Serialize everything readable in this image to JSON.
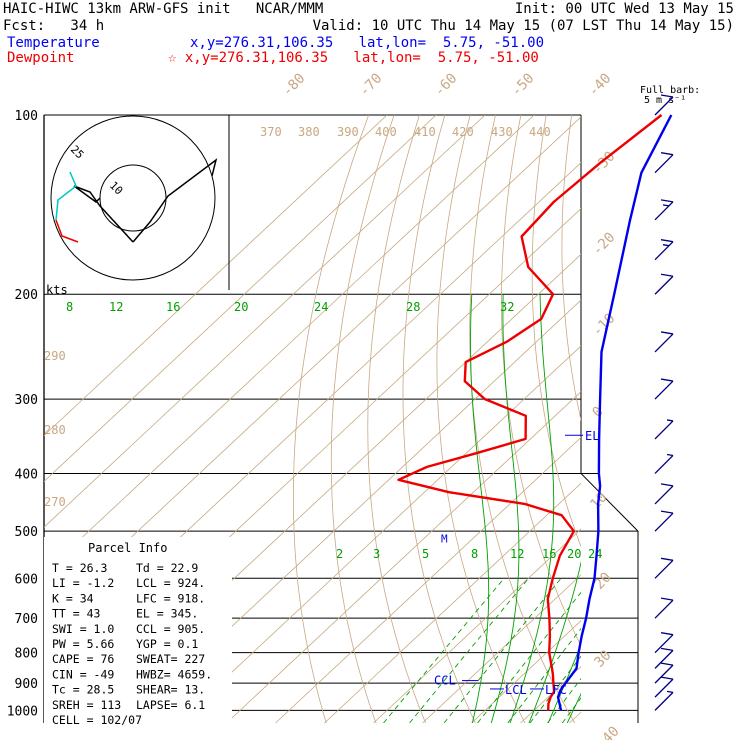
{
  "header": {
    "line1_left": "HAIC-HIWC 13km ARW-GFS init   NCAR/MMM",
    "line1_right": "Init: 00 UTC Wed 13 May 15",
    "line2_left": "Fcst:   34 h",
    "line2_right": "Valid: 10 UTC Thu 14 May 15 (07 LST Thu 14 May 15)",
    "temp_label": "Temperature",
    "temp_coords": "x,y=276.31,106.35   lat,lon=  5.75, -51.00",
    "dew_label": "Dewpoint",
    "dew_coords": "☆ x,y=276.31,106.35   lat,lon=  5.75, -51.00",
    "temp_color": "#0000ee",
    "dew_color": "#ee0000"
  },
  "barb_legend": {
    "line1": "Full barb:",
    "line2": "5 m s⁻¹"
  },
  "hodograph": {
    "ring_outer": "25",
    "ring_inner": "10",
    "units": "kts"
  },
  "parcel_info": {
    "title": "Parcel Info",
    "rows": [
      {
        "l": "T   =   26.3",
        "r": "Td  =  22.9"
      },
      {
        "l": "LI  =   -1.2",
        "r": "LCL =  924."
      },
      {
        "l": "K   =     34",
        "r": "LFC =  918."
      },
      {
        "l": "TT  =     43",
        "r": "EL  =  345."
      },
      {
        "l": "SWI =    1.0",
        "r": "CCL =  905."
      },
      {
        "l": "PW  =   5.66",
        "r": "YGP =   0.1"
      },
      {
        "l": "CAPE =    76",
        "r": "SWEAT=  227"
      },
      {
        "l": "CIN  =   -49",
        "r": "HWBZ= 4659."
      },
      {
        "l": "Tc  =   28.5",
        "r": "SHEAR=  13."
      },
      {
        "l": "SREH =   113",
        "r": "LAPSE=  6.1"
      },
      {
        "l": "CELL = 102/07",
        "r": ""
      }
    ]
  },
  "chart_data": {
    "type": "skew-t",
    "pressure_levels": [
      "100",
      "200",
      "300",
      "400",
      "500",
      "600",
      "700",
      "800",
      "900",
      "1000"
    ],
    "temperature_isotherm_labels": [
      "-80",
      "-70",
      "-60",
      "-50",
      "-40",
      "-30",
      "-20",
      "-10",
      "0",
      "10",
      "20",
      "30",
      "40"
    ],
    "dry_adiabat_labels": [
      "370",
      "380",
      "390",
      "400",
      "410",
      "420",
      "430",
      "440",
      "290",
      "280",
      "270"
    ],
    "moist_adiabat_labels": [
      "8",
      "12",
      "16",
      "20",
      "24",
      "28",
      "32"
    ],
    "mixing_ratio_labels": [
      "2",
      "3",
      "5",
      "8",
      "12",
      "16",
      "20",
      "24"
    ],
    "annotations": [
      "EL",
      "CCL",
      "LCL",
      "LFC",
      "M"
    ],
    "temperature_profile": [
      {
        "p": 1000,
        "t": 25.5
      },
      {
        "p": 975,
        "t": 23.8
      },
      {
        "p": 950,
        "t": 22.0
      },
      {
        "p": 925,
        "t": 21.0
      },
      {
        "p": 900,
        "t": 20.5
      },
      {
        "p": 850,
        "t": 19.5
      },
      {
        "p": 800,
        "t": 16.5
      },
      {
        "p": 750,
        "t": 13.5
      },
      {
        "p": 700,
        "t": 10.5
      },
      {
        "p": 650,
        "t": 7.0
      },
      {
        "p": 600,
        "t": 3.5
      },
      {
        "p": 550,
        "t": -1.0
      },
      {
        "p": 500,
        "t": -6.0
      },
      {
        "p": 450,
        "t": -12.0
      },
      {
        "p": 420,
        "t": -15.5
      },
      {
        "p": 400,
        "t": -18.5
      },
      {
        "p": 350,
        "t": -26.0
      },
      {
        "p": 300,
        "t": -34.5
      },
      {
        "p": 250,
        "t": -44.5
      },
      {
        "p": 200,
        "t": -54.5
      },
      {
        "p": 150,
        "t": -67.5
      },
      {
        "p": 125,
        "t": -75.5
      },
      {
        "p": 100,
        "t": -82.0
      }
    ],
    "dewpoint_profile": [
      {
        "p": 1000,
        "t": 22.9
      },
      {
        "p": 975,
        "t": 21.5
      },
      {
        "p": 950,
        "t": 20.5
      },
      {
        "p": 930,
        "t": 20.0
      },
      {
        "p": 900,
        "t": 18.0
      },
      {
        "p": 870,
        "t": 16.0
      },
      {
        "p": 850,
        "t": 14.5
      },
      {
        "p": 800,
        "t": 10.5
      },
      {
        "p": 750,
        "t": 7.0
      },
      {
        "p": 700,
        "t": 3.0
      },
      {
        "p": 650,
        "t": -1.5
      },
      {
        "p": 600,
        "t": -5.0
      },
      {
        "p": 550,
        "t": -8.5
      },
      {
        "p": 500,
        "t": -11.0
      },
      {
        "p": 470,
        "t": -17.0
      },
      {
        "p": 450,
        "t": -27.0
      },
      {
        "p": 430,
        "t": -45.0
      },
      {
        "p": 410,
        "t": -58.0
      },
      {
        "p": 390,
        "t": -55.0
      },
      {
        "p": 370,
        "t": -48.0
      },
      {
        "p": 350,
        "t": -41.0
      },
      {
        "p": 320,
        "t": -46.0
      },
      {
        "p": 300,
        "t": -58.0
      },
      {
        "p": 280,
        "t": -66.0
      },
      {
        "p": 260,
        "t": -70.0
      },
      {
        "p": 240,
        "t": -66.0
      },
      {
        "p": 220,
        "t": -64.0
      },
      {
        "p": 200,
        "t": -67.0
      },
      {
        "p": 180,
        "t": -78.0
      },
      {
        "p": 160,
        "t": -86.0
      },
      {
        "p": 140,
        "t": -87.0
      },
      {
        "p": 120,
        "t": -86.0
      },
      {
        "p": 100,
        "t": -84.0
      }
    ],
    "wind_profile": [
      {
        "p": 100,
        "spd": 10,
        "dir": 270
      },
      {
        "p": 125,
        "spd": 10,
        "dir": 270
      },
      {
        "p": 150,
        "spd": 15,
        "dir": 275
      },
      {
        "p": 175,
        "spd": 15,
        "dir": 275
      },
      {
        "p": 200,
        "spd": 10,
        "dir": 280
      },
      {
        "p": 250,
        "spd": 10,
        "dir": 270
      },
      {
        "p": 300,
        "spd": 10,
        "dir": 250
      },
      {
        "p": 350,
        "spd": 5,
        "dir": 200
      },
      {
        "p": 400,
        "spd": 5,
        "dir": 90
      },
      {
        "p": 450,
        "spd": 10,
        "dir": 110
      },
      {
        "p": 500,
        "spd": 10,
        "dir": 100
      },
      {
        "p": 600,
        "spd": 10,
        "dir": 95
      },
      {
        "p": 700,
        "spd": 10,
        "dir": 90
      },
      {
        "p": 800,
        "spd": 10,
        "dir": 85
      },
      {
        "p": 850,
        "spd": 10,
        "dir": 90
      },
      {
        "p": 900,
        "spd": 10,
        "dir": 85
      },
      {
        "p": 950,
        "spd": 10,
        "dir": 80
      },
      {
        "p": 1000,
        "spd": 5,
        "dir": 75
      }
    ]
  }
}
